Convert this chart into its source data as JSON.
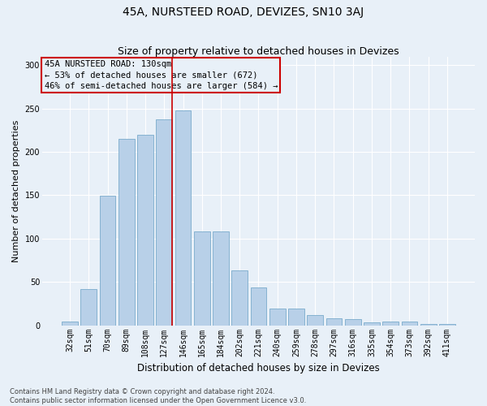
{
  "title": "45A, NURSTEED ROAD, DEVIZES, SN10 3AJ",
  "subtitle": "Size of property relative to detached houses in Devizes",
  "xlabel": "Distribution of detached houses by size in Devizes",
  "ylabel": "Number of detached properties",
  "categories": [
    "32sqm",
    "51sqm",
    "70sqm",
    "89sqm",
    "108sqm",
    "127sqm",
    "146sqm",
    "165sqm",
    "184sqm",
    "202sqm",
    "221sqm",
    "240sqm",
    "259sqm",
    "278sqm",
    "297sqm",
    "316sqm",
    "335sqm",
    "354sqm",
    "373sqm",
    "392sqm",
    "411sqm"
  ],
  "values": [
    4,
    42,
    149,
    215,
    220,
    237,
    248,
    108,
    108,
    63,
    44,
    19,
    19,
    12,
    8,
    7,
    3,
    4,
    4,
    2,
    2
  ],
  "bar_color": "#b8d0e8",
  "bar_edge_color": "#7aabcc",
  "bg_color": "#e8f0f8",
  "grid_color": "#ffffff",
  "annotation_box_text": "45A NURSTEED ROAD: 130sqm\n← 53% of detached houses are smaller (672)\n46% of semi-detached houses are larger (584) →",
  "annotation_box_edge_color": "#cc0000",
  "vline_x_index": 5,
  "vline_color": "#cc0000",
  "footnote": "Contains HM Land Registry data © Crown copyright and database right 2024.\nContains public sector information licensed under the Open Government Licence v3.0.",
  "ylim": [
    0,
    310
  ],
  "title_fontsize": 10,
  "subtitle_fontsize": 9,
  "xlabel_fontsize": 8.5,
  "ylabel_fontsize": 8,
  "tick_fontsize": 7,
  "footnote_fontsize": 6,
  "annotation_fontsize": 7.5
}
